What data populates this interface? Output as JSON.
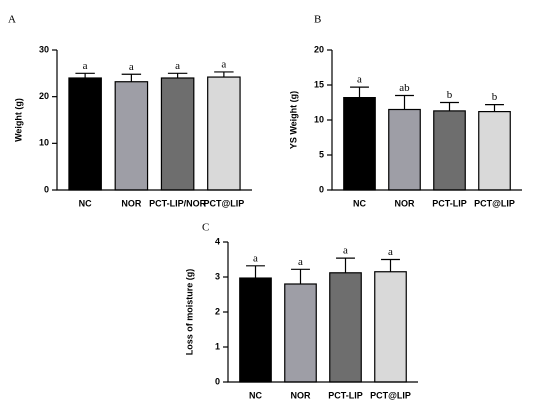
{
  "chart_data": [
    {
      "type": "bar",
      "panel": "A",
      "ylabel": "Weight (g)",
      "categories": [
        "NC",
        "NOR",
        "PCT-LIP/NOR",
        "PCT@LIP"
      ],
      "values": [
        24,
        23.2,
        24,
        24.2
      ],
      "errors": [
        1,
        1.6,
        1,
        1.1
      ],
      "letters": [
        "a",
        "a",
        "a",
        "a"
      ],
      "colors": [
        "#000000",
        "#9e9ea6",
        "#6e6e6e",
        "#d9d9d9"
      ],
      "ylim": [
        0,
        30
      ],
      "yticks": [
        0,
        10,
        20,
        30
      ]
    },
    {
      "type": "bar",
      "panel": "B",
      "ylabel": "YS Weight (g)",
      "categories": [
        "NC",
        "NOR",
        "PCT-LIP",
        "PCT@LIP"
      ],
      "values": [
        13.2,
        11.5,
        11.3,
        11.2
      ],
      "errors": [
        1.5,
        2,
        1.2,
        1
      ],
      "letters": [
        "a",
        "ab",
        "b",
        "b"
      ],
      "colors": [
        "#000000",
        "#9e9ea6",
        "#6e6e6e",
        "#d9d9d9"
      ],
      "ylim": [
        0,
        20
      ],
      "yticks": [
        0,
        5,
        10,
        15,
        20
      ]
    },
    {
      "type": "bar",
      "panel": "C",
      "ylabel": "Loss of moisture (g)",
      "categories": [
        "NC",
        "NOR",
        "PCT-LIP",
        "PCT@LIP"
      ],
      "values": [
        2.97,
        2.8,
        3.12,
        3.15
      ],
      "errors": [
        0.35,
        0.42,
        0.42,
        0.35
      ],
      "letters": [
        "a",
        "a",
        "a",
        "a"
      ],
      "colors": [
        "#000000",
        "#9e9ea6",
        "#6e6e6e",
        "#d9d9d9"
      ],
      "ylim": [
        0,
        4
      ],
      "yticks": [
        0,
        1,
        2,
        3,
        4
      ]
    }
  ]
}
